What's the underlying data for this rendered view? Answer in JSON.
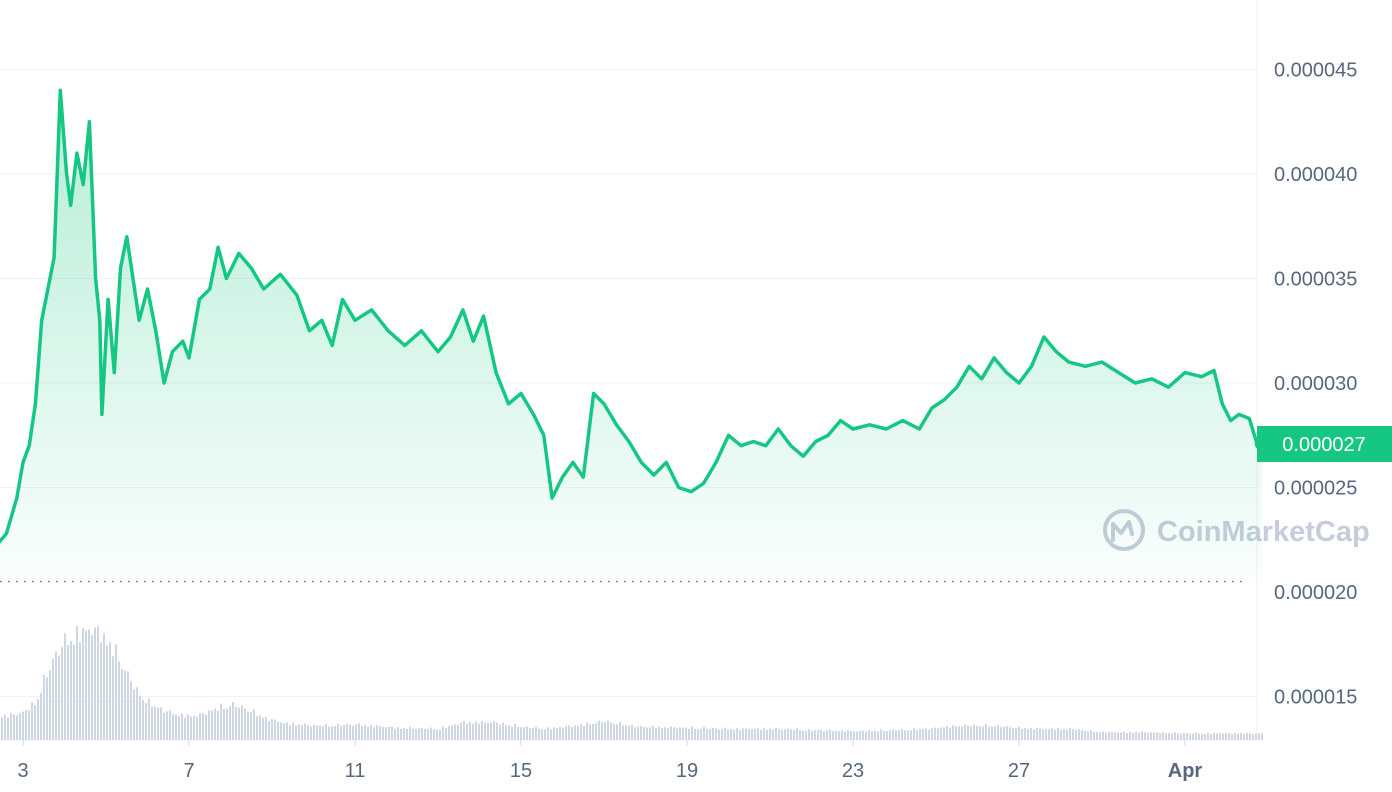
{
  "colors": {
    "line": "#16c784",
    "area_top": "#16c784",
    "grid": "#eff2f5",
    "volume": "#cfd6e4",
    "axis_text": "#58667e",
    "watermark": "#c6ccdb",
    "baseline": "#808a9d"
  },
  "watermark": {
    "text": "CoinMarketCap",
    "icon": "coinmarketcap-logo-icon"
  },
  "chart_data": {
    "type": "area",
    "title": "",
    "xlabel": "",
    "ylabel": "",
    "x_ticks": [
      "3",
      "7",
      "11",
      "15",
      "19",
      "23",
      "27",
      "Apr"
    ],
    "y_ticks": [
      "0.000045",
      "0.000040",
      "0.000035",
      "0.000030",
      "0.000025",
      "0.000020",
      "0.000015"
    ],
    "current_price_label": "0.000027",
    "ylim": [
      1.25e-05,
      4.9e-05
    ],
    "baseline_value": 2.05e-05,
    "grid": true,
    "series": [
      {
        "values": [
          [
            2.1,
            2.05e-05
          ],
          [
            2.35,
            2.22e-05
          ],
          [
            2.6,
            2.28e-05
          ],
          [
            2.85,
            2.45e-05
          ],
          [
            3.0,
            2.62e-05
          ],
          [
            3.15,
            2.7e-05
          ],
          [
            3.3,
            2.9e-05
          ],
          [
            3.45,
            3.3e-05
          ],
          [
            3.6,
            3.45e-05
          ],
          [
            3.75,
            3.6e-05
          ],
          [
            3.9,
            4.4e-05
          ],
          [
            4.05,
            4e-05
          ],
          [
            4.15,
            3.85e-05
          ],
          [
            4.3,
            4.1e-05
          ],
          [
            4.45,
            3.95e-05
          ],
          [
            4.6,
            4.25e-05
          ],
          [
            4.75,
            3.5e-05
          ],
          [
            4.85,
            3.3e-05
          ],
          [
            4.9,
            2.85e-05
          ],
          [
            5.05,
            3.4e-05
          ],
          [
            5.2,
            3.05e-05
          ],
          [
            5.35,
            3.55e-05
          ],
          [
            5.5,
            3.7e-05
          ],
          [
            5.65,
            3.5e-05
          ],
          [
            5.8,
            3.3e-05
          ],
          [
            6.0,
            3.45e-05
          ],
          [
            6.2,
            3.25e-05
          ],
          [
            6.4,
            3e-05
          ],
          [
            6.6,
            3.15e-05
          ],
          [
            6.85,
            3.2e-05
          ],
          [
            7.0,
            3.12e-05
          ],
          [
            7.25,
            3.4e-05
          ],
          [
            7.5,
            3.45e-05
          ],
          [
            7.7,
            3.65e-05
          ],
          [
            7.9,
            3.5e-05
          ],
          [
            8.2,
            3.62e-05
          ],
          [
            8.5,
            3.55e-05
          ],
          [
            8.8,
            3.45e-05
          ],
          [
            9.2,
            3.52e-05
          ],
          [
            9.6,
            3.42e-05
          ],
          [
            9.9,
            3.25e-05
          ],
          [
            10.2,
            3.3e-05
          ],
          [
            10.45,
            3.18e-05
          ],
          [
            10.7,
            3.4e-05
          ],
          [
            11.0,
            3.3e-05
          ],
          [
            11.4,
            3.35e-05
          ],
          [
            11.8,
            3.25e-05
          ],
          [
            12.2,
            3.18e-05
          ],
          [
            12.6,
            3.25e-05
          ],
          [
            13.0,
            3.15e-05
          ],
          [
            13.3,
            3.22e-05
          ],
          [
            13.6,
            3.35e-05
          ],
          [
            13.85,
            3.2e-05
          ],
          [
            14.1,
            3.32e-05
          ],
          [
            14.4,
            3.05e-05
          ],
          [
            14.7,
            2.9e-05
          ],
          [
            15.0,
            2.95e-05
          ],
          [
            15.3,
            2.85e-05
          ],
          [
            15.55,
            2.75e-05
          ],
          [
            15.75,
            2.45e-05
          ],
          [
            16.0,
            2.55e-05
          ],
          [
            16.25,
            2.62e-05
          ],
          [
            16.5,
            2.55e-05
          ],
          [
            16.75,
            2.95e-05
          ],
          [
            17.0,
            2.9e-05
          ],
          [
            17.3,
            2.8e-05
          ],
          [
            17.6,
            2.72e-05
          ],
          [
            17.9,
            2.62e-05
          ],
          [
            18.2,
            2.56e-05
          ],
          [
            18.5,
            2.62e-05
          ],
          [
            18.8,
            2.5e-05
          ],
          [
            19.1,
            2.48e-05
          ],
          [
            19.4,
            2.52e-05
          ],
          [
            19.7,
            2.62e-05
          ],
          [
            20.0,
            2.75e-05
          ],
          [
            20.3,
            2.7e-05
          ],
          [
            20.6,
            2.72e-05
          ],
          [
            20.9,
            2.7e-05
          ],
          [
            21.2,
            2.78e-05
          ],
          [
            21.5,
            2.7e-05
          ],
          [
            21.8,
            2.65e-05
          ],
          [
            22.1,
            2.72e-05
          ],
          [
            22.4,
            2.75e-05
          ],
          [
            22.7,
            2.82e-05
          ],
          [
            23.0,
            2.78e-05
          ],
          [
            23.4,
            2.8e-05
          ],
          [
            23.8,
            2.78e-05
          ],
          [
            24.2,
            2.82e-05
          ],
          [
            24.6,
            2.78e-05
          ],
          [
            24.9,
            2.88e-05
          ],
          [
            25.2,
            2.92e-05
          ],
          [
            25.5,
            2.98e-05
          ],
          [
            25.8,
            3.08e-05
          ],
          [
            26.1,
            3.02e-05
          ],
          [
            26.4,
            3.12e-05
          ],
          [
            26.7,
            3.05e-05
          ],
          [
            27.0,
            3e-05
          ],
          [
            27.3,
            3.08e-05
          ],
          [
            27.6,
            3.22e-05
          ],
          [
            27.9,
            3.15e-05
          ],
          [
            28.2,
            3.1e-05
          ],
          [
            28.6,
            3.08e-05
          ],
          [
            29.0,
            3.1e-05
          ],
          [
            29.4,
            3.05e-05
          ],
          [
            29.8,
            3e-05
          ],
          [
            30.2,
            3.02e-05
          ],
          [
            30.6,
            2.98e-05
          ],
          [
            31.0,
            3.05e-05
          ],
          [
            31.4,
            3.03e-05
          ],
          [
            31.7,
            3.06e-05
          ],
          [
            31.9,
            2.9e-05
          ],
          [
            32.1,
            2.82e-05
          ],
          [
            32.3,
            2.85e-05
          ],
          [
            32.55,
            2.83e-05
          ],
          [
            32.75,
            2.7e-05
          ],
          [
            32.85,
            2.71e-05
          ]
        ]
      }
    ],
    "volume": [
      [
        2.1,
        0.24
      ],
      [
        2.6,
        0.22
      ],
      [
        3.0,
        0.25
      ],
      [
        3.3,
        0.35
      ],
      [
        3.5,
        0.55
      ],
      [
        3.7,
        0.72
      ],
      [
        3.9,
        0.85
      ],
      [
        4.1,
        0.92
      ],
      [
        4.4,
        0.97
      ],
      [
        4.6,
        1.0
      ],
      [
        4.8,
        0.97
      ],
      [
        5.0,
        0.9
      ],
      [
        5.2,
        0.8
      ],
      [
        5.45,
        0.62
      ],
      [
        5.7,
        0.45
      ],
      [
        6.0,
        0.34
      ],
      [
        6.4,
        0.26
      ],
      [
        6.8,
        0.22
      ],
      [
        7.2,
        0.22
      ],
      [
        7.6,
        0.28
      ],
      [
        8.0,
        0.32
      ],
      [
        8.4,
        0.28
      ],
      [
        8.8,
        0.2
      ],
      [
        9.3,
        0.15
      ],
      [
        10.0,
        0.13
      ],
      [
        11.0,
        0.14
      ],
      [
        12.0,
        0.11
      ],
      [
        13.0,
        0.1
      ],
      [
        13.6,
        0.16
      ],
      [
        14.3,
        0.16
      ],
      [
        15.0,
        0.12
      ],
      [
        15.5,
        0.1
      ],
      [
        16.3,
        0.13
      ],
      [
        17.0,
        0.17
      ],
      [
        17.8,
        0.12
      ],
      [
        19.0,
        0.11
      ],
      [
        20.0,
        0.1
      ],
      [
        21.0,
        0.1
      ],
      [
        22.0,
        0.09
      ],
      [
        23.0,
        0.08
      ],
      [
        24.0,
        0.09
      ],
      [
        24.8,
        0.1
      ],
      [
        25.5,
        0.13
      ],
      [
        26.3,
        0.13
      ],
      [
        27.0,
        0.11
      ],
      [
        27.5,
        0.1
      ],
      [
        28.2,
        0.1
      ],
      [
        29.0,
        0.07
      ],
      [
        30.0,
        0.07
      ],
      [
        31.0,
        0.06
      ],
      [
        32.0,
        0.06
      ],
      [
        32.85,
        0.06
      ]
    ]
  }
}
